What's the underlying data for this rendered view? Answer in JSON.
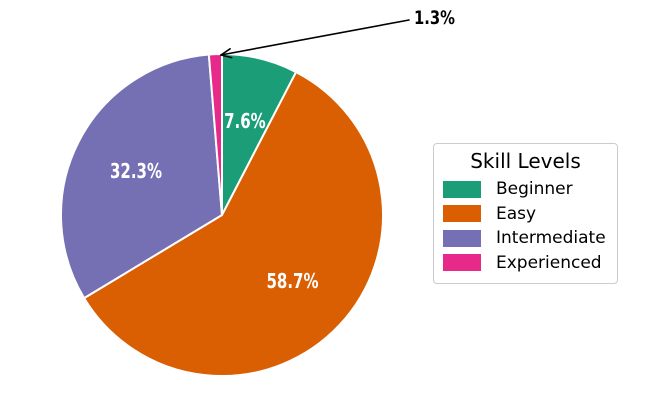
{
  "page": {
    "background": "#ffffff"
  },
  "chart_data": {
    "type": "pie",
    "categories": [
      "Beginner",
      "Easy",
      "Intermediate",
      "Experienced"
    ],
    "values": [
      7.6,
      58.7,
      32.3,
      1.3
    ],
    "pct_labels": [
      "7.6%",
      "58.7%",
      "32.3%",
      "1.3%"
    ],
    "pct_label_placement": [
      "inside",
      "inside",
      "inside",
      "annotation"
    ],
    "colors": [
      "#1b9e77",
      "#d95f02",
      "#7570b3",
      "#e7298a"
    ],
    "pct_label_color": "#ffffff",
    "slice_edge_color": "#ffffff",
    "start_angle": 90,
    "direction": "clockwise",
    "label_distance": 0.6,
    "legend": {
      "title": "Skill Levels",
      "position": "right"
    },
    "annotation": {
      "text": "1.3%",
      "target_category": "Experienced",
      "arrow_color": "#000000"
    }
  }
}
